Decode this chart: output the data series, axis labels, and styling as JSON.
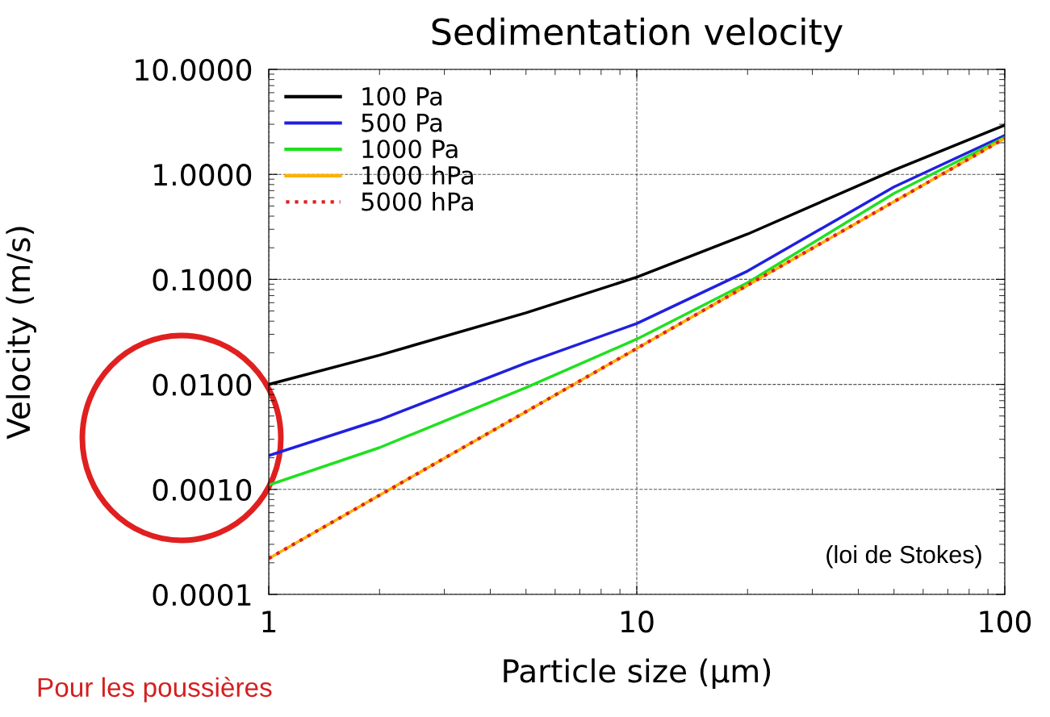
{
  "chart_data": {
    "type": "line",
    "title": "Sedimentation velocity",
    "xlabel": "Particle size (μm)",
    "ylabel": "Velocity (m/s)",
    "log": "xy",
    "grid": true,
    "legend": "top left",
    "xlim": [
      1,
      100
    ],
    "xticks": [
      1,
      10,
      100
    ],
    "ylim": [
      0.0001,
      10
    ],
    "yticks": [
      {
        "value": 0.0001,
        "label": "0.0001"
      },
      {
        "value": 0.001,
        "label": "0.0010"
      },
      {
        "value": 0.01,
        "label": "0.0100"
      },
      {
        "value": 0.1,
        "label": "0.1000"
      },
      {
        "value": 1,
        "label": "1.0000"
      },
      {
        "value": 10,
        "label": "10.0000"
      }
    ],
    "x": [
      1,
      2,
      5,
      10,
      20,
      50,
      100
    ],
    "series": [
      {
        "name": "100 Pa",
        "color": "#000000",
        "values": [
          0.01,
          0.019,
          0.048,
          0.105,
          0.27,
          1.1,
          2.95
        ]
      },
      {
        "name": "500 Pa",
        "color": "#2020e0",
        "values": [
          0.0021,
          0.0046,
          0.016,
          0.038,
          0.12,
          0.76,
          2.35
        ]
      },
      {
        "name": "1000 Pa",
        "color": "#20e020",
        "values": [
          0.0011,
          0.0025,
          0.0093,
          0.027,
          0.093,
          0.66,
          2.25
        ]
      },
      {
        "name": "1000 hPa",
        "color": "#ffb000",
        "values": [
          0.00022,
          0.00088,
          0.0055,
          0.022,
          0.088,
          0.55,
          2.2
        ]
      },
      {
        "name": "5000 hPa",
        "color": "#e02020",
        "line_style": "dotted",
        "values": [
          0.00022,
          0.00088,
          0.0055,
          0.022,
          0.088,
          0.55,
          2.2
        ]
      }
    ],
    "annotations": [
      "(loi de Stokes)",
      "Pour les poussières"
    ]
  }
}
